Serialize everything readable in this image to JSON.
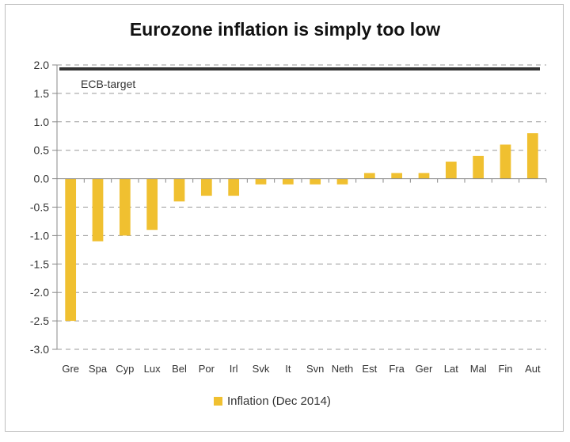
{
  "chart_data": {
    "type": "bar",
    "title": "Eurozone inflation is simply too low",
    "xlabel": "",
    "ylabel": "",
    "ylim": [
      -3.0,
      2.0
    ],
    "yticks": [
      "2.0",
      "1.5",
      "1.0",
      "0.5",
      "0.0",
      "-0.5",
      "-1.0",
      "-1.5",
      "-2.0",
      "-2.5",
      "-3.0"
    ],
    "grid": true,
    "categories": [
      "Gre",
      "Spa",
      "Cyp",
      "Lux",
      "Bel",
      "Por",
      "Irl",
      "Svk",
      "It",
      "Svn",
      "Neth",
      "Est",
      "Fra",
      "Ger",
      "Lat",
      "Mal",
      "Fin",
      "Aut"
    ],
    "series": [
      {
        "name": "Inflation (Dec 2014)",
        "color": "#f0c030",
        "values": [
          -2.5,
          -1.1,
          -1.0,
          -0.9,
          -0.4,
          -0.3,
          -0.3,
          -0.1,
          -0.1,
          -0.1,
          -0.1,
          0.1,
          0.1,
          0.1,
          0.3,
          0.4,
          0.6,
          0.8
        ]
      }
    ],
    "reference_line": {
      "label": "ECB-target",
      "value": 2.0,
      "color": "#333333"
    },
    "legend": {
      "position": "bottom",
      "entries": [
        "Inflation (Dec 2014)"
      ]
    }
  }
}
